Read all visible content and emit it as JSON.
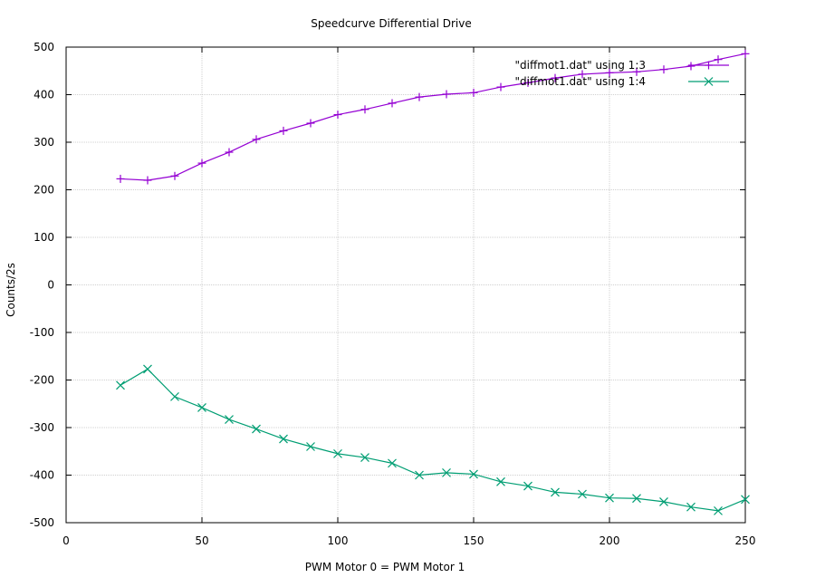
{
  "chart_data": {
    "type": "line",
    "title": "Speedcurve Differential Drive",
    "xlabel": "PWM Motor 0 = PWM Motor 1",
    "ylabel": "Counts/2s",
    "xlim": [
      0,
      250
    ],
    "ylim": [
      -500,
      500
    ],
    "x_ticks": [
      0,
      50,
      100,
      150,
      200,
      250
    ],
    "y_ticks": [
      -500,
      -400,
      -300,
      -200,
      -100,
      0,
      100,
      200,
      300,
      400,
      500
    ],
    "grid": true,
    "legend_position": "top-right",
    "x": [
      20,
      30,
      40,
      50,
      60,
      70,
      80,
      90,
      100,
      110,
      120,
      130,
      140,
      150,
      160,
      170,
      180,
      190,
      200,
      210,
      220,
      230,
      240,
      250
    ],
    "series": [
      {
        "name": "\"diffmot1.dat\" using 1:3",
        "color": "#9400d3",
        "marker": "plus",
        "values": [
          223,
          220,
          229,
          256,
          279,
          306,
          324,
          340,
          358,
          369,
          382,
          395,
          401,
          404,
          416,
          425,
          435,
          443,
          446,
          448,
          453,
          460,
          474,
          486
        ]
      },
      {
        "name": "\"diffmot1.dat\" using 1:4",
        "color": "#009e73",
        "marker": "cross",
        "values": [
          -211,
          -177,
          -235,
          -258,
          -283,
          -303,
          -324,
          -340,
          -355,
          -363,
          -375,
          -400,
          -395,
          -398,
          -414,
          -423,
          -436,
          -440,
          -448,
          -449,
          -456,
          -467,
          -475,
          -451
        ]
      }
    ]
  }
}
